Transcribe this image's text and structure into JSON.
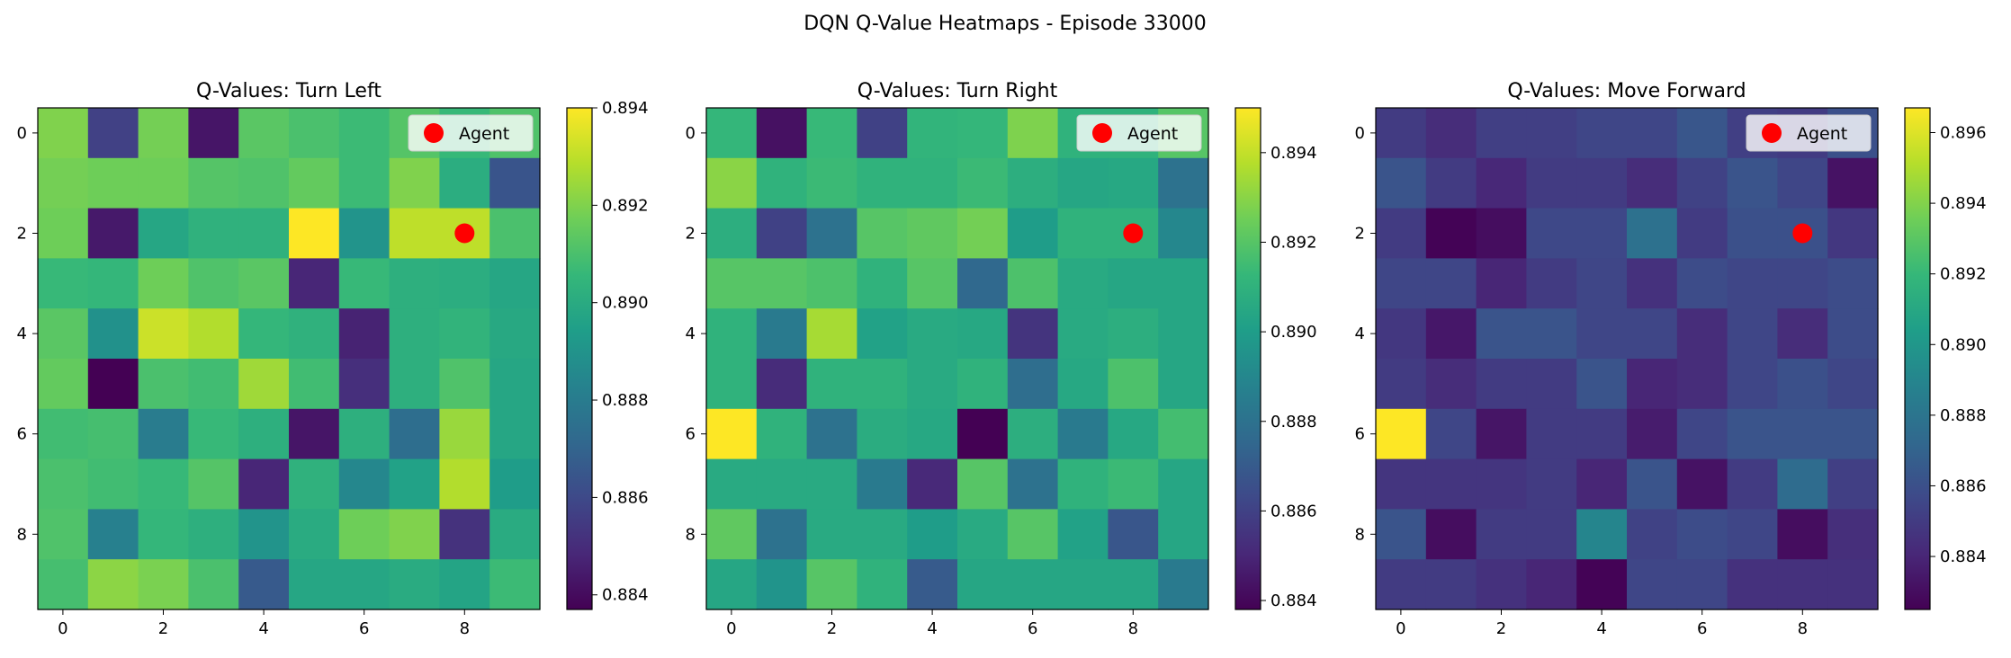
{
  "figure": {
    "suptitle": "DQN Q-Value Heatmaps - Episode 33000"
  },
  "colormap": {
    "name": "viridis",
    "stops": [
      "#440154",
      "#482878",
      "#3e4989",
      "#31688e",
      "#26828e",
      "#1f9e89",
      "#35b779",
      "#6ece58",
      "#b5de2b",
      "#fde725"
    ]
  },
  "marker": {
    "label": "Agent",
    "color": "#ff0000",
    "row": 2,
    "col": 8
  },
  "chart_data": [
    {
      "type": "heatmap",
      "title": "Q-Values: Turn Left",
      "xticks": [
        0,
        2,
        4,
        6,
        8
      ],
      "yticks": [
        0,
        2,
        4,
        6,
        8
      ],
      "clim": [
        0.8837,
        0.894
      ],
      "colorbar_ticks": [
        "0.884",
        "0.886",
        "0.888",
        "0.890",
        "0.892",
        "0.894"
      ],
      "legend": "top-right",
      "matrix": [
        [
          0.892,
          0.8857,
          0.8918,
          0.8843,
          0.8913,
          0.891,
          0.8907,
          0.8912,
          0.8906,
          0.8911
        ],
        [
          0.8918,
          0.8917,
          0.8917,
          0.8912,
          0.8911,
          0.8915,
          0.8907,
          0.892,
          0.8901,
          0.8864
        ],
        [
          0.8917,
          0.8844,
          0.8898,
          0.8903,
          0.8903,
          0.894,
          0.889,
          0.893,
          0.893,
          0.891
        ],
        [
          0.8906,
          0.8905,
          0.8917,
          0.8911,
          0.8913,
          0.8848,
          0.8906,
          0.8902,
          0.8901,
          0.8898
        ],
        [
          0.8913,
          0.8889,
          0.8932,
          0.8928,
          0.8905,
          0.8903,
          0.8847,
          0.8902,
          0.8904,
          0.8899
        ],
        [
          0.8915,
          0.8837,
          0.891,
          0.8908,
          0.8925,
          0.8908,
          0.8851,
          0.8902,
          0.8911,
          0.8898
        ],
        [
          0.8908,
          0.8909,
          0.888,
          0.8906,
          0.8902,
          0.8843,
          0.8902,
          0.8874,
          0.8924,
          0.8898
        ],
        [
          0.891,
          0.8908,
          0.8906,
          0.8912,
          0.8848,
          0.8903,
          0.8885,
          0.8896,
          0.8928,
          0.8894
        ],
        [
          0.8911,
          0.8882,
          0.8905,
          0.8902,
          0.889,
          0.89,
          0.8917,
          0.892,
          0.8852,
          0.89
        ],
        [
          0.8909,
          0.8922,
          0.8919,
          0.891,
          0.8866,
          0.8898,
          0.8898,
          0.89,
          0.8897,
          0.8907
        ]
      ]
    },
    {
      "type": "heatmap",
      "title": "Q-Values: Turn Right",
      "xticks": [
        0,
        2,
        4,
        6,
        8
      ],
      "yticks": [
        0,
        2,
        4,
        6,
        8
      ],
      "clim": [
        0.8838,
        0.895
      ],
      "colorbar_ticks": [
        "0.884",
        "0.886",
        "0.888",
        "0.890",
        "0.892",
        "0.894"
      ],
      "legend": "top-right",
      "matrix": [
        [
          0.8912,
          0.8843,
          0.8913,
          0.886,
          0.8911,
          0.8912,
          0.8928,
          0.891,
          0.891,
          0.892
        ],
        [
          0.893,
          0.891,
          0.8914,
          0.891,
          0.891,
          0.8914,
          0.8908,
          0.8904,
          0.8905,
          0.888
        ],
        [
          0.8908,
          0.886,
          0.888,
          0.892,
          0.8922,
          0.8926,
          0.89,
          0.891,
          0.891,
          0.889
        ],
        [
          0.892,
          0.892,
          0.8918,
          0.891,
          0.892,
          0.8876,
          0.8918,
          0.8906,
          0.8904,
          0.8904
        ],
        [
          0.891,
          0.8884,
          0.8935,
          0.8902,
          0.8906,
          0.8905,
          0.8855,
          0.8906,
          0.8908,
          0.8904
        ],
        [
          0.891,
          0.8852,
          0.891,
          0.891,
          0.8906,
          0.891,
          0.8878,
          0.8905,
          0.8918,
          0.8904
        ],
        [
          0.895,
          0.891,
          0.888,
          0.8907,
          0.8905,
          0.8838,
          0.8908,
          0.8884,
          0.8905,
          0.8916
        ],
        [
          0.8906,
          0.8906,
          0.8906,
          0.8884,
          0.8851,
          0.892,
          0.888,
          0.891,
          0.8914,
          0.8904
        ],
        [
          0.8922,
          0.888,
          0.8906,
          0.8906,
          0.89,
          0.8906,
          0.892,
          0.8902,
          0.8868,
          0.8904
        ],
        [
          0.8904,
          0.8896,
          0.892,
          0.891,
          0.887,
          0.8904,
          0.8904,
          0.8904,
          0.8904,
          0.8884
        ]
      ]
    },
    {
      "type": "heatmap",
      "title": "Q-Values: Move Forward",
      "xticks": [
        0,
        2,
        4,
        6,
        8
      ],
      "yticks": [
        0,
        2,
        4,
        6,
        8
      ],
      "clim": [
        0.8825,
        0.8967
      ],
      "colorbar_ticks": [
        "0.884",
        "0.886",
        "0.888",
        "0.890",
        "0.892",
        "0.894",
        "0.896"
      ],
      "legend": "top-right",
      "matrix": [
        [
          0.885,
          0.8843,
          0.8852,
          0.8852,
          0.8855,
          0.8855,
          0.8863,
          0.8852,
          0.885,
          0.886
        ],
        [
          0.8862,
          0.885,
          0.8841,
          0.885,
          0.885,
          0.8843,
          0.8853,
          0.8862,
          0.8855,
          0.8832
        ],
        [
          0.885,
          0.8826,
          0.883,
          0.8856,
          0.8856,
          0.8878,
          0.885,
          0.886,
          0.886,
          0.8848
        ],
        [
          0.8855,
          0.8855,
          0.884,
          0.885,
          0.8855,
          0.8845,
          0.8858,
          0.8855,
          0.8855,
          0.8858
        ],
        [
          0.8848,
          0.8834,
          0.8862,
          0.8862,
          0.8855,
          0.8855,
          0.8843,
          0.8855,
          0.8843,
          0.8858
        ],
        [
          0.885,
          0.8843,
          0.885,
          0.885,
          0.8862,
          0.884,
          0.8843,
          0.8855,
          0.886,
          0.8855
        ],
        [
          0.8967,
          0.8855,
          0.8833,
          0.885,
          0.885,
          0.8836,
          0.8855,
          0.8862,
          0.8862,
          0.8862
        ],
        [
          0.8847,
          0.8847,
          0.8847,
          0.885,
          0.884,
          0.8862,
          0.8832,
          0.885,
          0.8875,
          0.8852
        ],
        [
          0.8862,
          0.883,
          0.885,
          0.885,
          0.889,
          0.8853,
          0.8858,
          0.8855,
          0.883,
          0.8844
        ],
        [
          0.885,
          0.885,
          0.8845,
          0.884,
          0.8826,
          0.8855,
          0.8855,
          0.8845,
          0.8845,
          0.8845
        ]
      ]
    }
  ]
}
